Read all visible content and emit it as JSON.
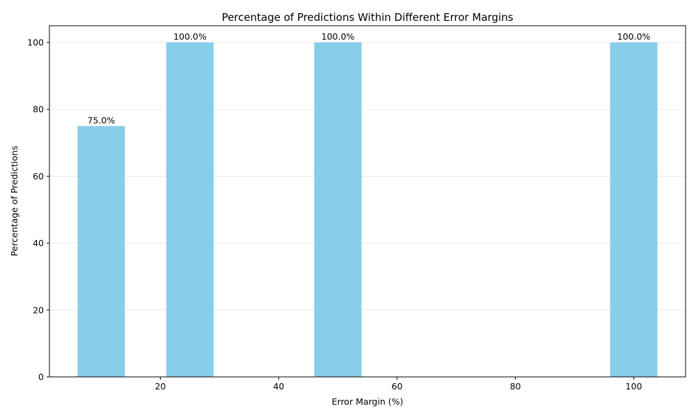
{
  "chart_data": {
    "type": "bar",
    "title": "Percentage of Predictions Within Different Error Margins",
    "xlabel": "Error Margin (%)",
    "ylabel": "Percentage of Predictions",
    "x": [
      10,
      25,
      50,
      100
    ],
    "values": [
      75.0,
      100.0,
      100.0,
      100.0
    ],
    "bar_labels": [
      "75.0%",
      "100.0%",
      "100.0%",
      "100.0%"
    ],
    "bar_width": 8,
    "xlim": [
      1.25,
      108.75
    ],
    "ylim": [
      0,
      105
    ],
    "xticks": [
      20,
      40,
      60,
      80,
      100
    ],
    "xtick_labels": [
      "20",
      "40",
      "60",
      "80",
      "100"
    ],
    "yticks": [
      0,
      20,
      40,
      60,
      80,
      100
    ],
    "ytick_labels": [
      "0",
      "20",
      "40",
      "60",
      "80",
      "100"
    ],
    "grid": "y",
    "colors": {
      "bar": "#87CEEB",
      "grid": "#e6e6e6",
      "axis": "#000000"
    }
  }
}
